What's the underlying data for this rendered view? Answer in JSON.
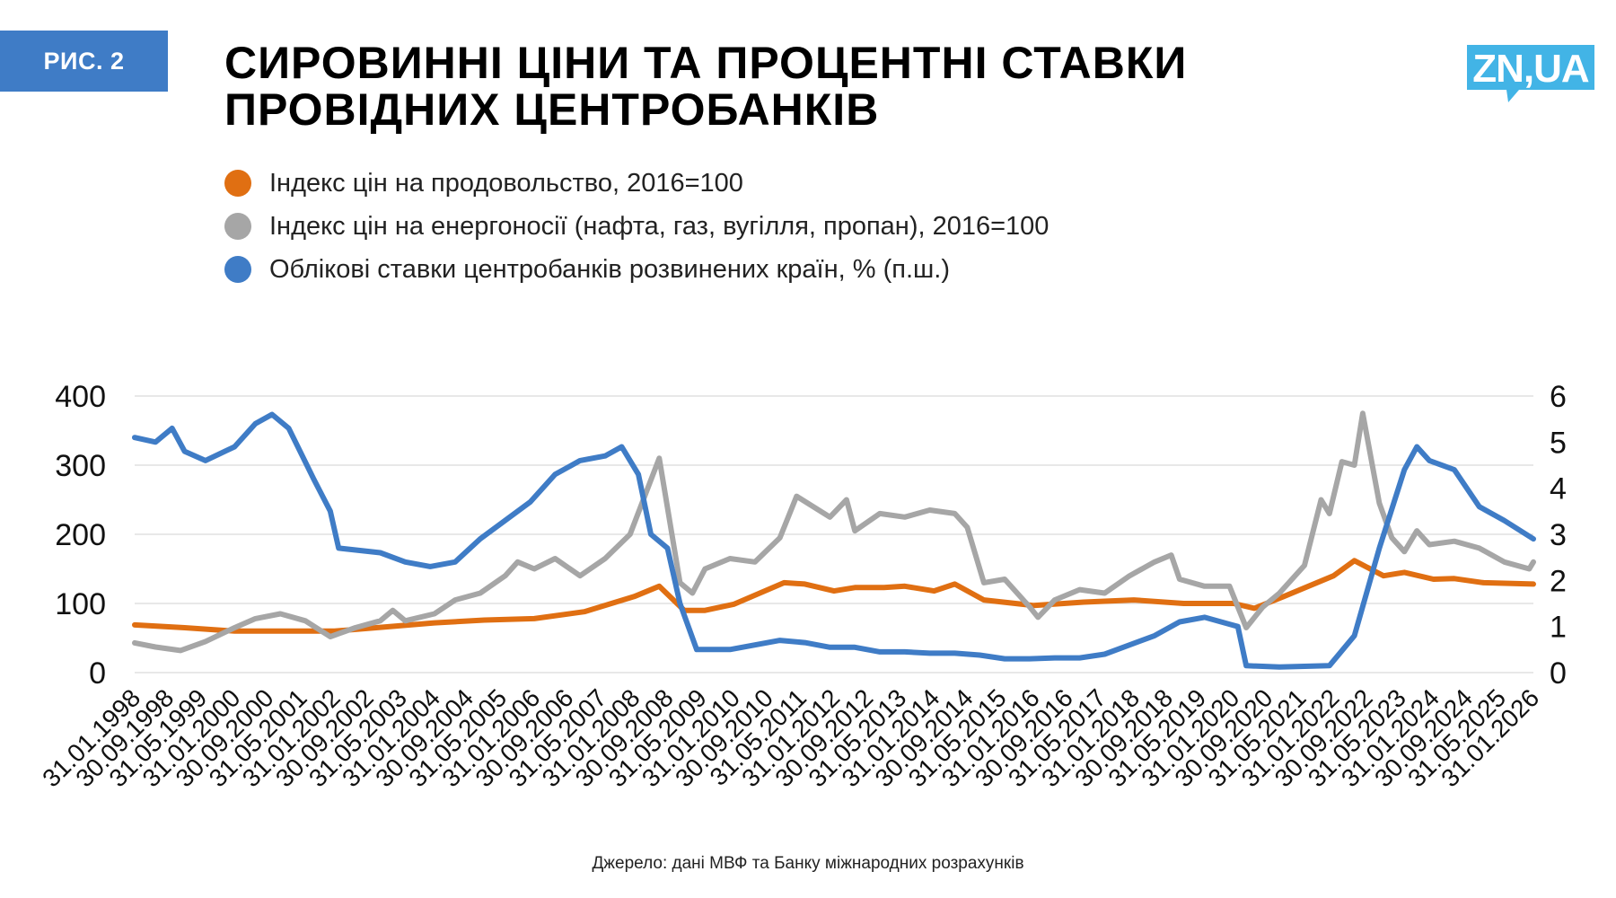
{
  "header": {
    "badge": "РИС. 2",
    "title_line1": "СИРОВИННІ ЦІНИ ТА ПРОЦЕНТНІ СТАВКИ",
    "title_line2": "ПРОВІДНИХ ЦЕНТРОБАНКІВ",
    "logo_text": "ZN,UA"
  },
  "colors": {
    "badge": "#3f7cc6",
    "logo": "#42b4e6",
    "food": "#e06f12",
    "energy": "#a6a6a6",
    "rates": "#3f7cc6",
    "grid": "#d9d9d9"
  },
  "source": "Джерело: дані МВФ та Банку міжнародних розрахунків",
  "chart_data": {
    "type": "line",
    "title": "",
    "legend_position": "top-left",
    "grid": true,
    "x_tick_labels": [
      "31.01.1998",
      "30.09.1998",
      "31.05.1999",
      "31.01.2000",
      "30.09.2000",
      "31.05.2001",
      "31.01.2002",
      "30.09.2002",
      "31.05.2003",
      "31.01.2004",
      "30.09.2004",
      "31.05.2005",
      "31.01.2006",
      "30.09.2006",
      "31.05.2007",
      "31.01.2008",
      "30.09.2008",
      "31.05.2009",
      "31.01.2010",
      "30.09.2010",
      "31.05.2011",
      "31.01.2012",
      "30.09.2012",
      "31.05.2013",
      "31.01.2014",
      "30.09.2014",
      "31.05.2015",
      "31.01.2016",
      "30.09.2016",
      "31.05.2017",
      "31.01.2018",
      "30.09.2018",
      "31.05.2019",
      "31.01.2020",
      "30.09.2020",
      "31.05.2021",
      "31.01.2022",
      "30.09.2022",
      "31.05.2023",
      "31.01.2024",
      "30.09.2024",
      "31.05.2025",
      "31.01.2026"
    ],
    "y_left": {
      "ticks": [
        "0",
        "100",
        "200",
        "300",
        "400"
      ],
      "lim": [
        0,
        400
      ]
    },
    "y_right": {
      "ticks": [
        "0",
        "1",
        "2",
        "3",
        "4",
        "5",
        "6"
      ],
      "lim": [
        0,
        6
      ]
    },
    "series": [
      {
        "name": "Індекс цін на продовольство, 2016=100",
        "axis": "left",
        "color": "#e06f12",
        "points": [
          [
            "01.1998",
            69
          ],
          [
            "01.1999",
            65
          ],
          [
            "01.2000",
            60
          ],
          [
            "01.2001",
            60
          ],
          [
            "01.2002",
            60
          ],
          [
            "01.2003",
            66
          ],
          [
            "01.2004",
            72
          ],
          [
            "01.2005",
            76
          ],
          [
            "01.2006",
            78
          ],
          [
            "01.2007",
            88
          ],
          [
            "01.2008",
            110
          ],
          [
            "07.2008",
            125
          ],
          [
            "01.2009",
            90
          ],
          [
            "06.2009",
            90
          ],
          [
            "01.2010",
            99
          ],
          [
            "01.2011",
            130
          ],
          [
            "06.2011",
            128
          ],
          [
            "01.2012",
            118
          ],
          [
            "06.2012",
            123
          ],
          [
            "01.2013",
            123
          ],
          [
            "06.2013",
            125
          ],
          [
            "01.2014",
            118
          ],
          [
            "06.2014",
            128
          ],
          [
            "01.2015",
            105
          ],
          [
            "01.2016",
            97
          ],
          [
            "01.2017",
            102
          ],
          [
            "01.2018",
            105
          ],
          [
            "01.2019",
            100
          ],
          [
            "01.2020",
            100
          ],
          [
            "06.2020",
            93
          ],
          [
            "01.2021",
            110
          ],
          [
            "01.2022",
            140
          ],
          [
            "06.2022",
            162
          ],
          [
            "01.2023",
            140
          ],
          [
            "06.2023",
            145
          ],
          [
            "01.2024",
            135
          ],
          [
            "06.2024",
            136
          ],
          [
            "01.2025",
            130
          ],
          [
            "01.2026",
            128
          ]
        ]
      },
      {
        "name": "Індекс цін на енергоносії (нафта, газ, вугілля, пропан), 2016=100",
        "axis": "left",
        "color": "#a6a6a6",
        "points": [
          [
            "01.1998",
            43
          ],
          [
            "06.1998",
            37
          ],
          [
            "12.1998",
            32
          ],
          [
            "06.1999",
            45
          ],
          [
            "01.2000",
            65
          ],
          [
            "06.2000",
            78
          ],
          [
            "12.2000",
            85
          ],
          [
            "06.2001",
            75
          ],
          [
            "12.2001",
            52
          ],
          [
            "06.2002",
            65
          ],
          [
            "12.2002",
            75
          ],
          [
            "03.2003",
            90
          ],
          [
            "06.2003",
            75
          ],
          [
            "01.2004",
            85
          ],
          [
            "06.2004",
            105
          ],
          [
            "12.2004",
            115
          ],
          [
            "06.2005",
            140
          ],
          [
            "09.2005",
            160
          ],
          [
            "01.2006",
            150
          ],
          [
            "06.2006",
            165
          ],
          [
            "12.2006",
            140
          ],
          [
            "06.2007",
            165
          ],
          [
            "12.2007",
            200
          ],
          [
            "07.2008",
            310
          ],
          [
            "12.2008",
            130
          ],
          [
            "03.2009",
            115
          ],
          [
            "06.2009",
            150
          ],
          [
            "12.2009",
            165
          ],
          [
            "06.2010",
            160
          ],
          [
            "12.2010",
            195
          ],
          [
            "04.2011",
            255
          ],
          [
            "12.2011",
            225
          ],
          [
            "04.2012",
            250
          ],
          [
            "06.2012",
            205
          ],
          [
            "12.2012",
            230
          ],
          [
            "06.2013",
            225
          ],
          [
            "12.2013",
            235
          ],
          [
            "06.2014",
            230
          ],
          [
            "09.2014",
            210
          ],
          [
            "01.2015",
            130
          ],
          [
            "06.2015",
            135
          ],
          [
            "12.2015",
            95
          ],
          [
            "02.2016",
            80
          ],
          [
            "06.2016",
            105
          ],
          [
            "12.2016",
            120
          ],
          [
            "06.2017",
            115
          ],
          [
            "12.2017",
            140
          ],
          [
            "06.2018",
            160
          ],
          [
            "10.2018",
            170
          ],
          [
            "12.2018",
            135
          ],
          [
            "06.2019",
            125
          ],
          [
            "12.2019",
            125
          ],
          [
            "04.2020",
            65
          ],
          [
            "08.2020",
            95
          ],
          [
            "12.2020",
            115
          ],
          [
            "06.2021",
            155
          ],
          [
            "10.2021",
            250
          ],
          [
            "12.2021",
            230
          ],
          [
            "03.2022",
            305
          ],
          [
            "06.2022",
            300
          ],
          [
            "08.2022",
            375
          ],
          [
            "12.2022",
            245
          ],
          [
            "03.2023",
            195
          ],
          [
            "06.2023",
            175
          ],
          [
            "09.2023",
            205
          ],
          [
            "12.2023",
            185
          ],
          [
            "06.2024",
            190
          ],
          [
            "12.2024",
            180
          ],
          [
            "06.2025",
            160
          ],
          [
            "12.2025",
            150
          ],
          [
            "01.2026",
            160
          ]
        ]
      },
      {
        "name": "Облікові ставки центробанків розвинених країн, % (п.ш.)",
        "axis": "right",
        "color": "#3f7cc6",
        "points": [
          [
            "01.1998",
            5.1
          ],
          [
            "06.1998",
            5.0
          ],
          [
            "10.1998",
            5.3
          ],
          [
            "01.1999",
            4.8
          ],
          [
            "06.1999",
            4.6
          ],
          [
            "01.2000",
            4.9
          ],
          [
            "06.2000",
            5.4
          ],
          [
            "10.2000",
            5.6
          ],
          [
            "02.2001",
            5.3
          ],
          [
            "08.2001",
            4.2
          ],
          [
            "12.2001",
            3.5
          ],
          [
            "02.2002",
            2.7
          ],
          [
            "12.2002",
            2.6
          ],
          [
            "06.2003",
            2.4
          ],
          [
            "12.2003",
            2.3
          ],
          [
            "06.2004",
            2.4
          ],
          [
            "12.2004",
            2.9
          ],
          [
            "06.2005",
            3.3
          ],
          [
            "12.2005",
            3.7
          ],
          [
            "06.2006",
            4.3
          ],
          [
            "12.2006",
            4.6
          ],
          [
            "06.2007",
            4.7
          ],
          [
            "10.2007",
            4.9
          ],
          [
            "02.2008",
            4.3
          ],
          [
            "05.2008",
            3.0
          ],
          [
            "09.2008",
            2.7
          ],
          [
            "12.2008",
            1.5
          ],
          [
            "04.2009",
            0.5
          ],
          [
            "12.2009",
            0.5
          ],
          [
            "06.2010",
            0.6
          ],
          [
            "12.2010",
            0.7
          ],
          [
            "06.2011",
            0.65
          ],
          [
            "12.2011",
            0.55
          ],
          [
            "06.2012",
            0.55
          ],
          [
            "12.2012",
            0.45
          ],
          [
            "06.2013",
            0.45
          ],
          [
            "12.2013",
            0.42
          ],
          [
            "06.2014",
            0.42
          ],
          [
            "12.2014",
            0.38
          ],
          [
            "06.2015",
            0.3
          ],
          [
            "12.2015",
            0.3
          ],
          [
            "06.2016",
            0.32
          ],
          [
            "12.2016",
            0.32
          ],
          [
            "06.2017",
            0.4
          ],
          [
            "12.2017",
            0.6
          ],
          [
            "06.2018",
            0.8
          ],
          [
            "12.2018",
            1.1
          ],
          [
            "06.2019",
            1.2
          ],
          [
            "12.2019",
            1.05
          ],
          [
            "02.2020",
            1.0
          ],
          [
            "04.2020",
            0.15
          ],
          [
            "12.2020",
            0.12
          ],
          [
            "12.2021",
            0.15
          ],
          [
            "06.2022",
            0.8
          ],
          [
            "12.2022",
            2.7
          ],
          [
            "06.2023",
            4.4
          ],
          [
            "09.2023",
            4.9
          ],
          [
            "12.2023",
            4.6
          ],
          [
            "06.2024",
            4.4
          ],
          [
            "12.2024",
            3.6
          ],
          [
            "06.2025",
            3.3
          ],
          [
            "01.2026",
            2.9
          ]
        ]
      }
    ]
  }
}
